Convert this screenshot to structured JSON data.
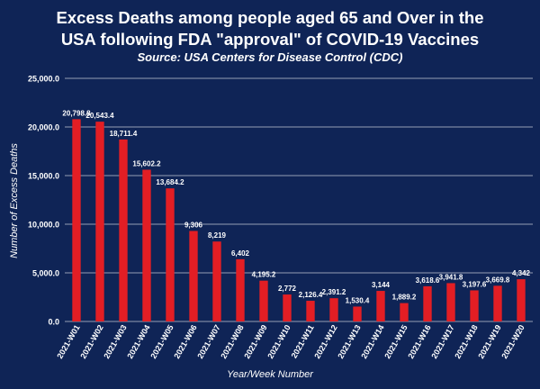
{
  "title_line_1": "Excess Deaths among people aged 65 and Over in the",
  "title_line_2": "USA following FDA \"approval\" of COVID-19 Vaccines",
  "subtitle": "Source: USA Centers for Disease Control (CDC)",
  "colors": {
    "background": "#0f2456",
    "bar": "#e31e24",
    "text": "#ffffff",
    "grid": "#ffffff"
  },
  "chart_data": {
    "type": "bar",
    "title": "Excess Deaths among people aged 65 and Over in the USA following FDA \"approval\" of COVID-19 Vaccines",
    "subtitle": "Source: USA Centers for Disease Control (CDC)",
    "xlabel": "Year/Week Number",
    "ylabel": "Number of Excess Deaths",
    "ylim": [
      0,
      25000
    ],
    "yticks": [
      0,
      5000,
      10000,
      15000,
      20000,
      25000
    ],
    "ytick_labels": [
      "0.0",
      "5,000.0",
      "10,000.0",
      "15,000.0",
      "20,000.0",
      "25,000.0"
    ],
    "grid": true,
    "legend": "none",
    "categories": [
      "2021-W01",
      "2021-W02",
      "2021-W03",
      "2021-W04",
      "2021-W05",
      "2021-W06",
      "2021-W07",
      "2021-W08",
      "2021-W09",
      "2021-W10",
      "2021-W11",
      "2021-W12",
      "2021-W13",
      "2021-W14",
      "2021-W15",
      "2021-W16",
      "2021-W17",
      "2021-W18",
      "2021-W19",
      "2021-W20"
    ],
    "values": [
      20798.8,
      20543.4,
      18711.4,
      15602.2,
      13684.2,
      9306,
      8219,
      6402,
      4195.2,
      2772,
      2126.4,
      2391.2,
      1530.4,
      3144,
      1889.2,
      3618.6,
      3941.8,
      3197.6,
      3669.8,
      4342
    ],
    "data_labels": [
      "20,798.8",
      "20,543.4",
      "18,711.4",
      "15,602.2",
      "13,684.2",
      "9,306",
      "8,219",
      "6,402",
      "4,195.2",
      "2,772",
      "2,126.4",
      "2,391.2",
      "1,530.4",
      "3,144",
      "1,889.2",
      "3,618.6",
      "3,941.8",
      "3,197.6",
      "3,669.8",
      "4,342"
    ]
  }
}
